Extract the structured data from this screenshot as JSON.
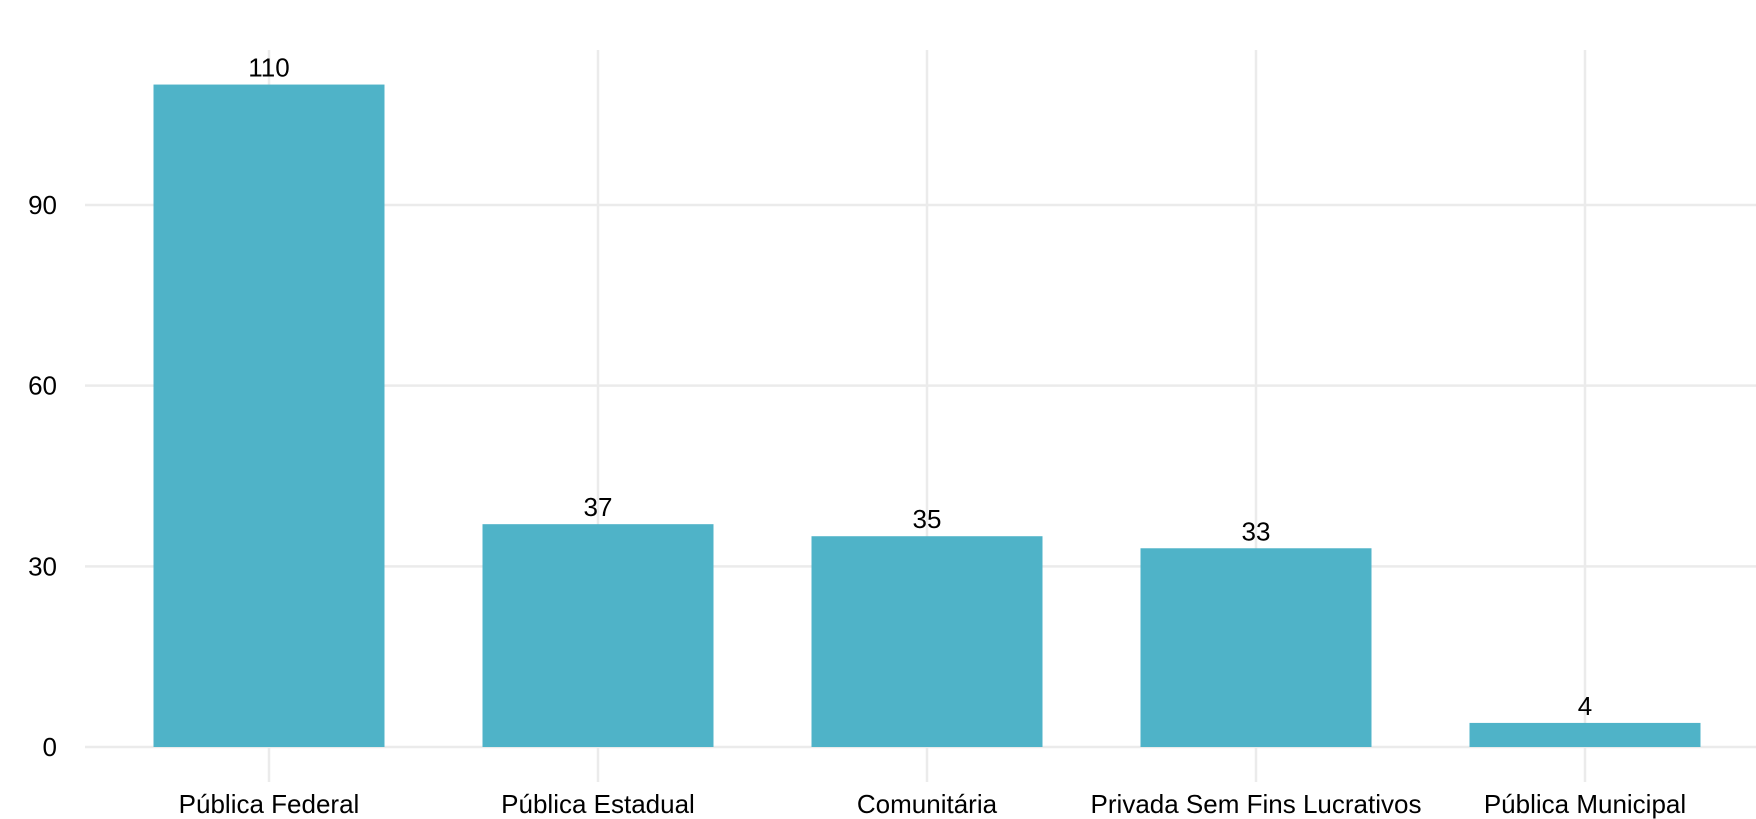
{
  "chart_data": {
    "type": "bar",
    "title": "",
    "xlabel": "",
    "ylabel": "",
    "categories": [
      "Pública Federal",
      "Pública Estadual",
      "Comunitária",
      "Privada Sem Fins Lucrativos",
      "Pública Municipal"
    ],
    "values": [
      110,
      37,
      35,
      33,
      4
    ],
    "data_labels": [
      "110",
      "37",
      "35",
      "33",
      "4"
    ],
    "y_ticks": [
      0,
      30,
      60,
      90
    ],
    "y_tick_labels": [
      "0",
      "30",
      "60",
      "90"
    ],
    "ylim": [
      0,
      115
    ],
    "grid": true,
    "legend": "none",
    "bar_color": "#4fb3c8",
    "grid_color": "#ebebeb",
    "text_color": "#000000"
  }
}
